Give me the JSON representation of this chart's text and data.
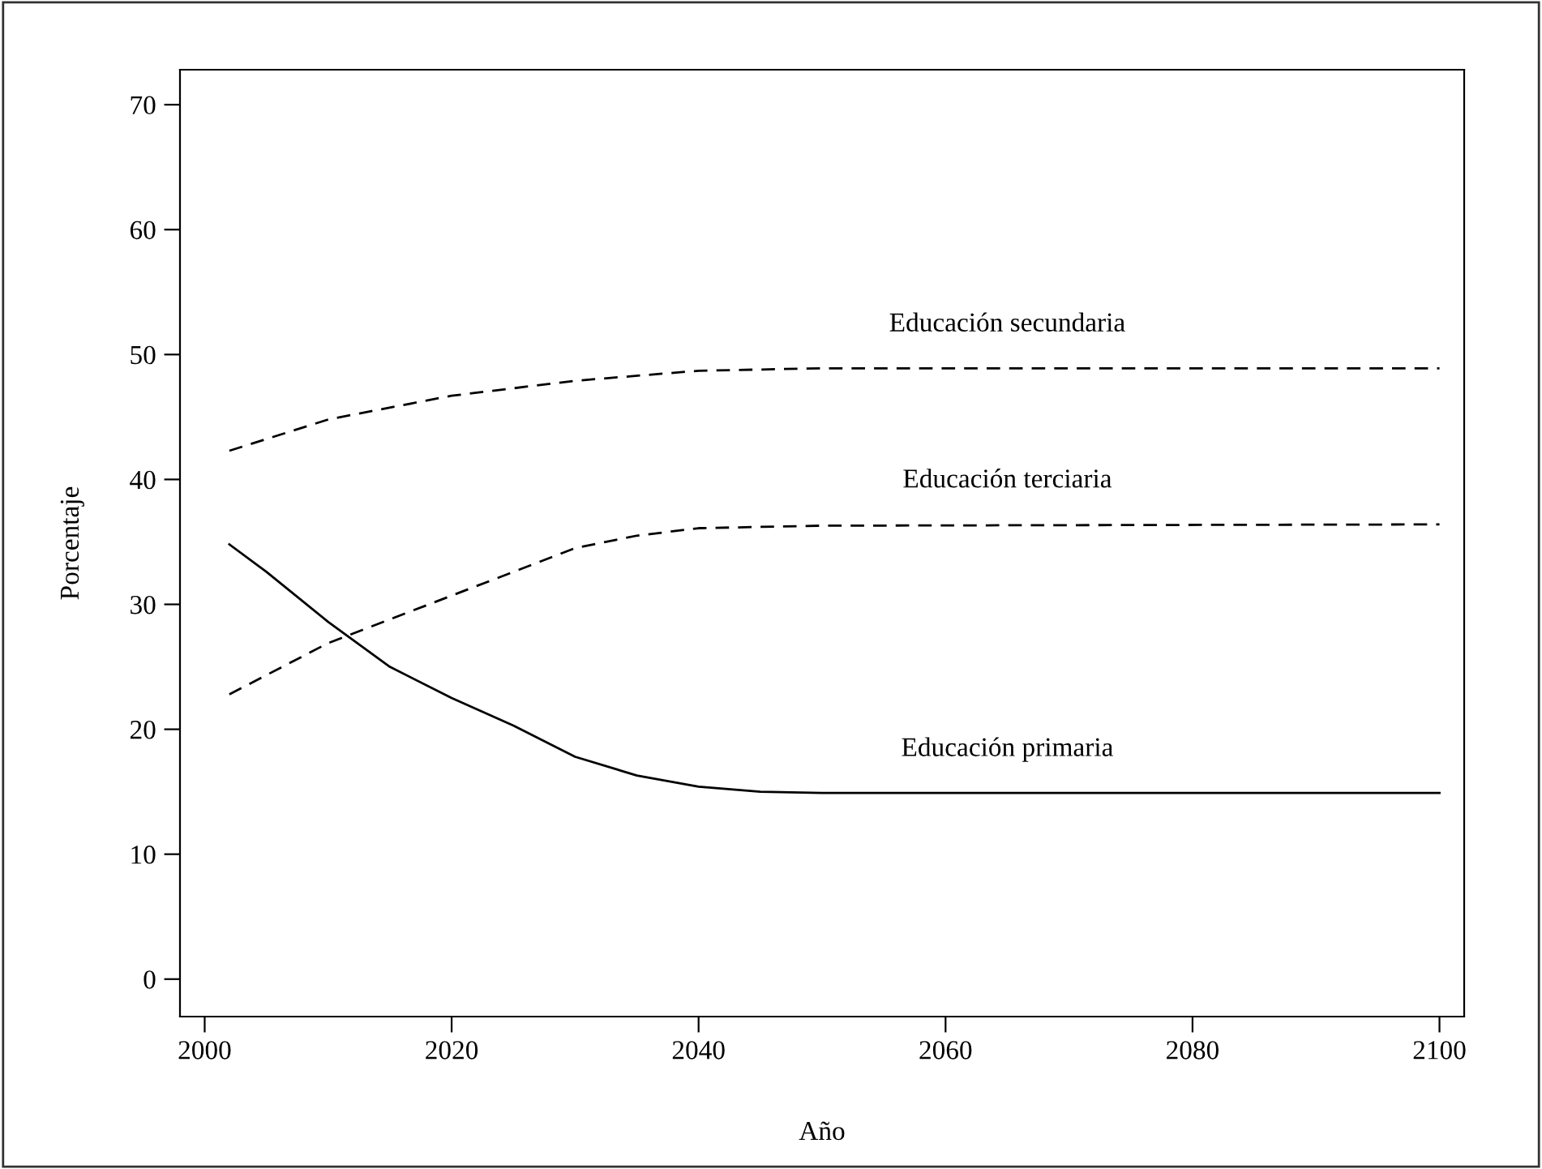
{
  "chart_data": {
    "type": "line",
    "xlabel": "Año",
    "ylabel": "Porcentaje",
    "xlim": [
      1998,
      2102
    ],
    "xticks": [
      2000,
      2020,
      2040,
      2060,
      2080,
      2100
    ],
    "ylim": [
      -3,
      72.8
    ],
    "yticks": [
      0,
      10,
      20,
      30,
      40,
      50,
      60,
      70
    ],
    "grid": false,
    "legend": false,
    "marker": "none",
    "series": [
      {
        "name": "Educación secundaria",
        "color": "#000000",
        "line_style": "dashed",
        "x": [
          2002,
          2010,
          2020,
          2030,
          2040,
          2050,
          2100
        ],
        "values": [
          42.3,
          44.8,
          46.7,
          47.9,
          48.7,
          48.9,
          48.9
        ]
      },
      {
        "name": "Educación terciaria",
        "color": "#000000",
        "line_style": "dashed",
        "x": [
          2002,
          2010,
          2020,
          2025,
          2030,
          2035,
          2040,
          2050,
          2100
        ],
        "values": [
          22.8,
          26.9,
          30.7,
          32.6,
          34.5,
          35.5,
          36.1,
          36.3,
          36.4
        ]
      },
      {
        "name": "Educación primaria",
        "color": "#000000",
        "line_style": "solid",
        "x": [
          2002,
          2005,
          2010,
          2015,
          2020,
          2025,
          2030,
          2035,
          2040,
          2045,
          2050,
          2100
        ],
        "values": [
          34.8,
          32.6,
          28.6,
          25.0,
          22.5,
          20.3,
          17.8,
          16.3,
          15.4,
          15.0,
          14.9,
          14.9
        ]
      }
    ]
  }
}
